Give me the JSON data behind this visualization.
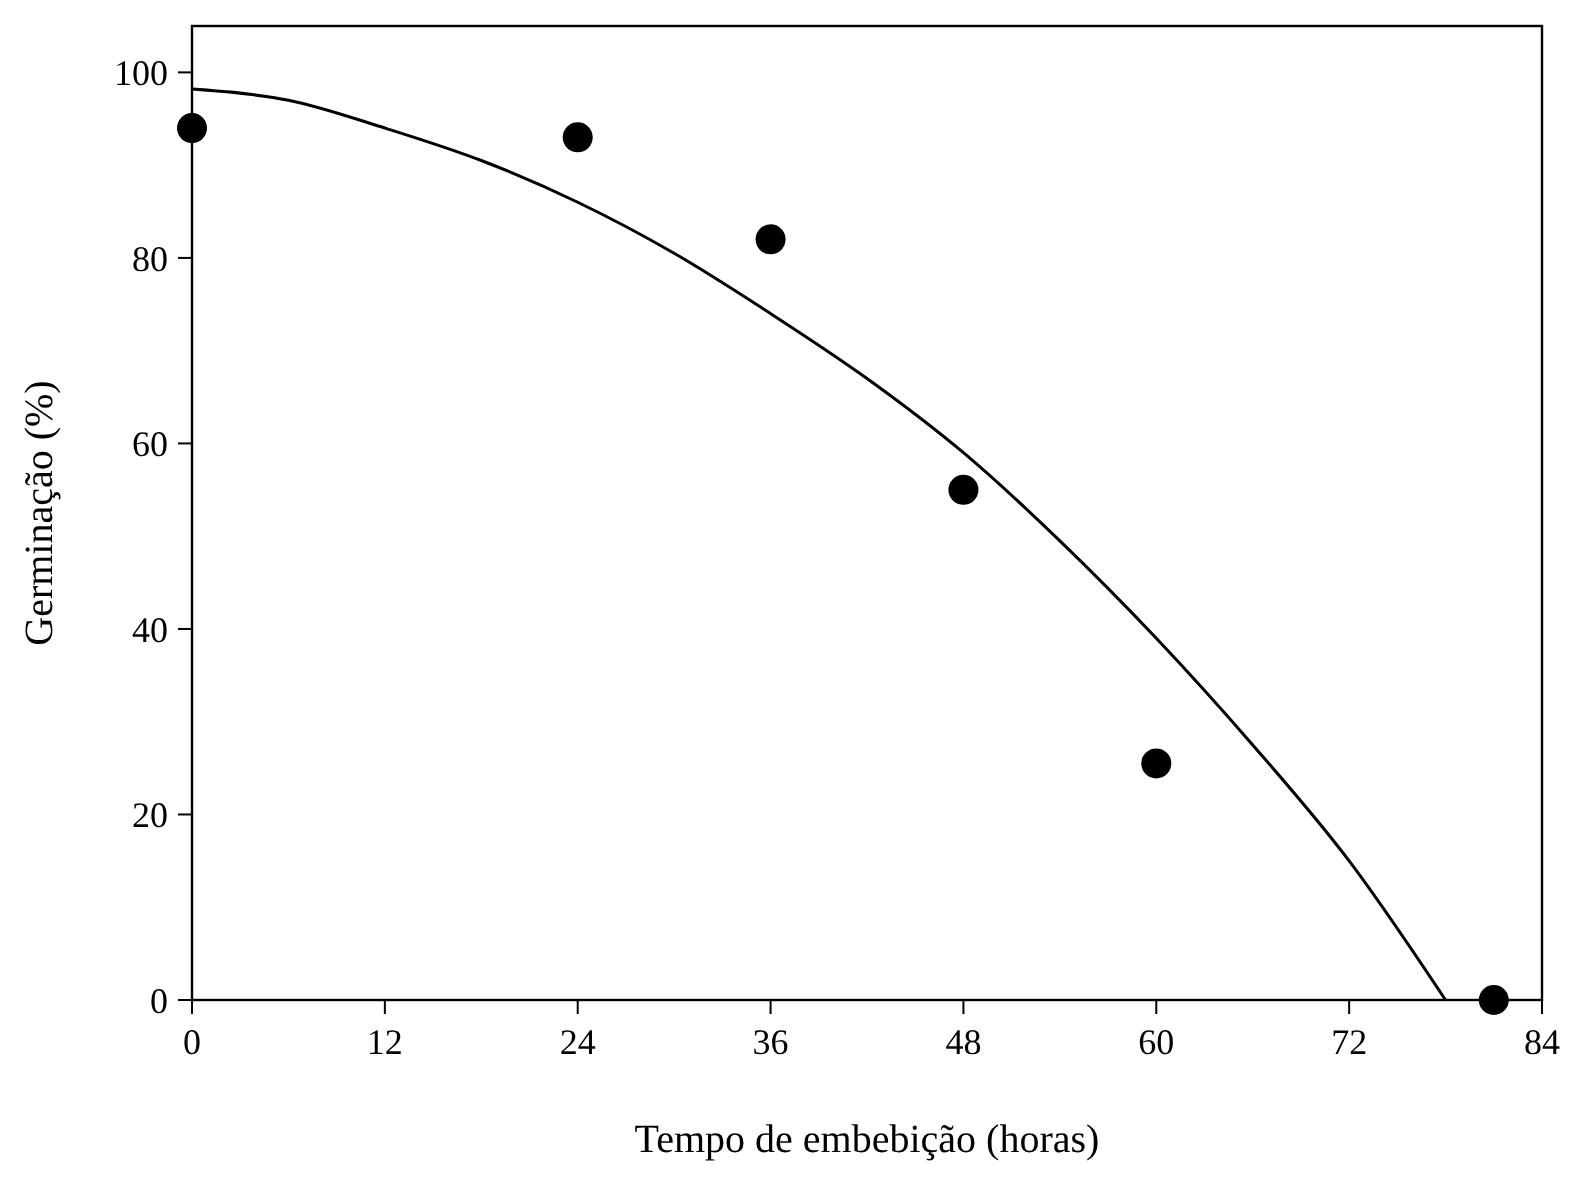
{
  "chart_data": {
    "type": "scatter",
    "xlabel": "Tempo de embebição (horas)",
    "ylabel": "Germinação (%)",
    "xlim": [
      0,
      84
    ],
    "ylim": [
      0,
      105
    ],
    "xticks": [
      0,
      12,
      24,
      36,
      48,
      60,
      72,
      84
    ],
    "yticks": [
      0,
      20,
      40,
      60,
      80,
      100
    ],
    "grid": false,
    "series": [
      {
        "color": "#000000",
        "marker": "circle",
        "x": [
          0,
          24,
          36,
          48,
          60,
          81
        ],
        "values": [
          94,
          93,
          82,
          55,
          25.5,
          0
        ]
      },
      {
        "type": "line",
        "color": "#000000",
        "line_style": "solid",
        "marker": "none",
        "x": [
          0,
          6,
          12,
          18,
          24,
          30,
          36,
          42,
          48,
          54,
          60,
          66,
          72,
          78
        ],
        "values": [
          98.2,
          97,
          94,
          90.5,
          86,
          80.5,
          74,
          67,
          59,
          49.5,
          39,
          27.5,
          15,
          0
        ]
      }
    ]
  }
}
